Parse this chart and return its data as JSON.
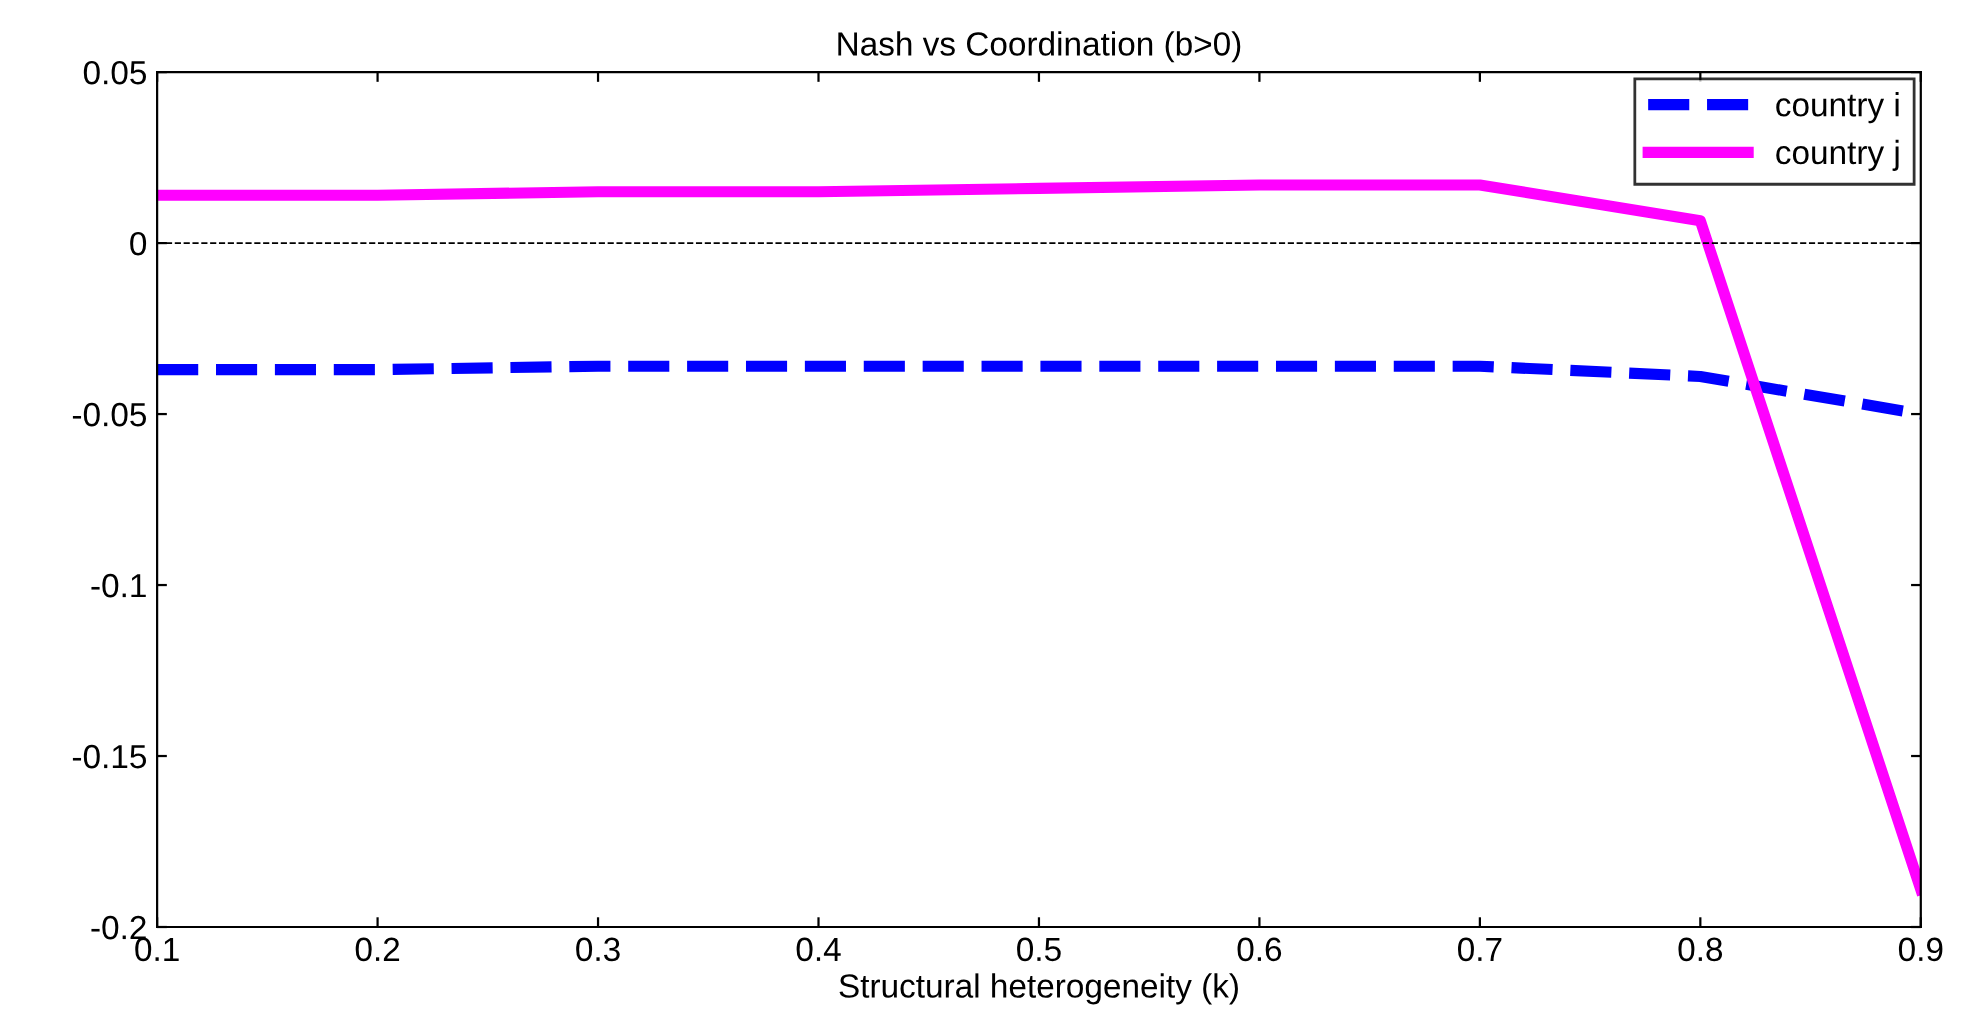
{
  "chart_data": {
    "type": "line",
    "title": "Nash vs Coordination (b>0)",
    "xlabel": "Structural heterogeneity (k)",
    "x": [
      0.1,
      0.2,
      0.3,
      0.4,
      0.5,
      0.6,
      0.7,
      0.8,
      0.9
    ],
    "series": [
      {
        "name": "country i",
        "color": "#0000ff",
        "line_style": "dashed",
        "values": [
          -0.037,
          -0.037,
          -0.036,
          -0.036,
          -0.036,
          -0.036,
          -0.036,
          -0.039,
          -0.05
        ]
      },
      {
        "name": "country j",
        "color": "#ff00ff",
        "line_style": "solid",
        "values": [
          0.014,
          0.014,
          0.015,
          0.015,
          0.016,
          0.017,
          0.017,
          0.0065,
          -0.189
        ]
      }
    ],
    "xlim": [
      0.1,
      0.9
    ],
    "xticks": [
      0.1,
      0.2,
      0.3,
      0.4,
      0.5,
      0.6,
      0.7,
      0.8,
      0.9
    ],
    "ylim": [
      -0.2,
      0.05
    ],
    "yticks": [
      -0.2,
      -0.15,
      -0.1,
      -0.05,
      0,
      0.05
    ],
    "ref_lines": [
      {
        "axis": "y",
        "value": 0,
        "color": "#000000",
        "line_style": "dashed"
      }
    ],
    "grid": false,
    "legend": "top right",
    "marker": "none"
  }
}
